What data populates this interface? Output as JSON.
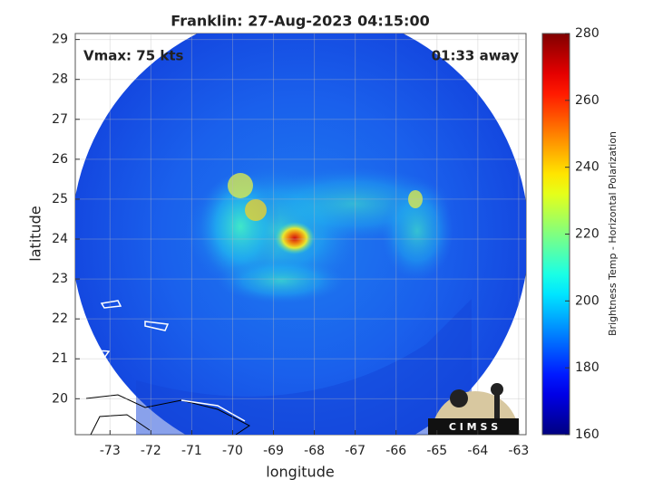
{
  "chart_data": {
    "type": "image",
    "title": "Franklin: 27-Aug-2023 04:15:00",
    "xlabel": "longitude",
    "ylabel": "latitude",
    "xlim": [
      -73.85,
      -62.82
    ],
    "ylim": [
      19.1,
      29.15
    ],
    "xticks": [
      -73,
      -72,
      -71,
      -70,
      -69,
      -68,
      -67,
      -66,
      -65,
      -64,
      -63
    ],
    "yticks": [
      20,
      21,
      22,
      23,
      24,
      25,
      26,
      27,
      28,
      29
    ],
    "grid": true,
    "colorbar": {
      "label": "Brightness Temp - Horizontal Polarization",
      "colormap": "jet",
      "clim": [
        160,
        280
      ],
      "ticks": [
        160,
        180,
        200,
        220,
        240,
        260,
        280
      ]
    },
    "annotations": [
      "Vmax: 75 kts",
      "01:33 away"
    ],
    "logo": "C I M S S"
  }
}
